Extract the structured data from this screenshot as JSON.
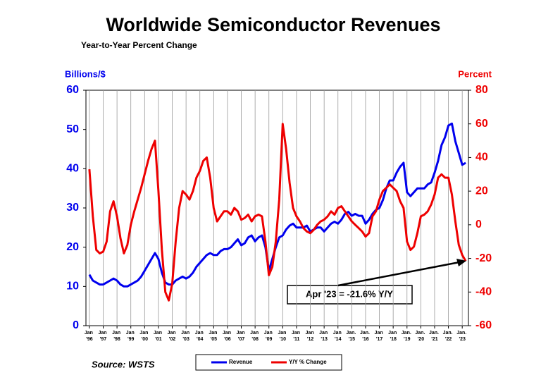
{
  "chart_data": {
    "type": "line",
    "title": "Worldwide Semiconductor Revenues",
    "subtitle": "Year-to-Year Percent Change",
    "y_label": "Billions/$",
    "y2_label": "Percent",
    "source": "Source: WSTS",
    "annotation": "Apr '23 = -21.6% Y/Y",
    "grid": true,
    "xlim": [
      1995.75,
      2023.45
    ],
    "ylim": [
      0,
      60
    ],
    "y2lim": [
      -60,
      80
    ],
    "yticks": [
      0,
      10,
      20,
      30,
      40,
      50,
      60
    ],
    "y2ticks": [
      -60,
      -40,
      -20,
      0,
      20,
      40,
      60,
      80
    ],
    "xticks": [
      {
        "value": 1996,
        "label": "Jan '96"
      },
      {
        "value": 1997,
        "label": "Jan '97"
      },
      {
        "value": 1998,
        "label": "Jan '98"
      },
      {
        "value": 1999,
        "label": "Jan '99"
      },
      {
        "value": 2000,
        "label": "Jan '00"
      },
      {
        "value": 2001,
        "label": "Jan '01"
      },
      {
        "value": 2002,
        "label": "Jan '02"
      },
      {
        "value": 2003,
        "label": "Jan '03"
      },
      {
        "value": 2004,
        "label": "Jan '04"
      },
      {
        "value": 2005,
        "label": "Jan '05"
      },
      {
        "value": 2006,
        "label": "Jan '06"
      },
      {
        "value": 2007,
        "label": "Jan '07"
      },
      {
        "value": 2008,
        "label": "Jan '08"
      },
      {
        "value": 2009,
        "label": "Jan '09"
      },
      {
        "value": 2010,
        "label": "Jan '10"
      },
      {
        "value": 2011,
        "label": "Jan '11"
      },
      {
        "value": 2012,
        "label": "Jan '12"
      },
      {
        "value": 2013,
        "label": "Jan '13"
      },
      {
        "value": 2014,
        "label": "Jan '14"
      },
      {
        "value": 2015,
        "label": "Jan. '15"
      },
      {
        "value": 2016,
        "label": "Jan. '16"
      },
      {
        "value": 2017,
        "label": "Jan '17"
      },
      {
        "value": 2018,
        "label": "Jan '18"
      },
      {
        "value": 2019,
        "label": "Jan. '19"
      },
      {
        "value": 2020,
        "label": "Jan. '20"
      },
      {
        "value": 2021,
        "label": "Jan. '21"
      },
      {
        "value": 2022,
        "label": "Jan. '22"
      },
      {
        "value": 2023,
        "label": "Jan. '23"
      }
    ],
    "x": [
      1996,
      1996.25,
      1996.5,
      1996.75,
      1997,
      1997.25,
      1997.5,
      1997.75,
      1998,
      1998.25,
      1998.5,
      1998.75,
      1999,
      1999.25,
      1999.5,
      1999.75,
      2000,
      2000.25,
      2000.5,
      2000.75,
      2001,
      2001.25,
      2001.5,
      2001.75,
      2002,
      2002.25,
      2002.5,
      2002.75,
      2003,
      2003.25,
      2003.5,
      2003.75,
      2004,
      2004.25,
      2004.5,
      2004.75,
      2005,
      2005.25,
      2005.5,
      2005.75,
      2006,
      2006.25,
      2006.5,
      2006.75,
      2007,
      2007.25,
      2007.5,
      2007.75,
      2008,
      2008.25,
      2008.5,
      2008.75,
      2009,
      2009.25,
      2009.5,
      2009.75,
      2010,
      2010.25,
      2010.5,
      2010.75,
      2011,
      2011.25,
      2011.5,
      2011.75,
      2012,
      2012.25,
      2012.5,
      2012.75,
      2013,
      2013.25,
      2013.5,
      2013.75,
      2014,
      2014.25,
      2014.5,
      2014.75,
      2015,
      2015.25,
      2015.5,
      2015.75,
      2016,
      2016.25,
      2016.5,
      2016.75,
      2017,
      2017.25,
      2017.5,
      2017.75,
      2018,
      2018.25,
      2018.5,
      2018.75,
      2019,
      2019.25,
      2019.5,
      2019.75,
      2020,
      2020.25,
      2020.5,
      2020.75,
      2021,
      2021.25,
      2021.5,
      2021.75,
      2022,
      2022.25,
      2022.5,
      2022.75,
      2023,
      2023.25
    ],
    "series": [
      {
        "name": "Revenue",
        "color": "#0000ee",
        "values": [
          13,
          11.5,
          11,
          10.5,
          10.5,
          11,
          11.5,
          12,
          11.5,
          10.5,
          10,
          10,
          10.5,
          11,
          11.5,
          12.5,
          14,
          15.5,
          17,
          18.5,
          17,
          13.5,
          11,
          10.5,
          10.5,
          11.5,
          12,
          12.5,
          12,
          12.5,
          13.5,
          15,
          16,
          17,
          18,
          18.5,
          18,
          18,
          19,
          19.5,
          19.5,
          20,
          21,
          22,
          20.5,
          21,
          22.5,
          23,
          21.5,
          22.5,
          23,
          20,
          14,
          17,
          20,
          22.5,
          23,
          24.5,
          25.5,
          26,
          25,
          25,
          25,
          25.5,
          24,
          24.5,
          25,
          25,
          24,
          25,
          26,
          26.5,
          26,
          27,
          28.5,
          29,
          28,
          28.5,
          28,
          28,
          26,
          27,
          28.5,
          29.5,
          30,
          32,
          35,
          37,
          37,
          39,
          40.5,
          41.5,
          34,
          33,
          34,
          35,
          35,
          35,
          36,
          36.5,
          39,
          42,
          46,
          48,
          51,
          51.5,
          47,
          44,
          41,
          41.5
        ]
      },
      {
        "name": "Y/Y % Change",
        "color": "#ee0000",
        "axis": "y2",
        "values": [
          33,
          5,
          -15,
          -17,
          -16,
          -10,
          8,
          14,
          5,
          -8,
          -17,
          -12,
          0,
          8,
          15,
          22,
          30,
          38,
          45,
          50,
          20,
          -15,
          -40,
          -45,
          -35,
          -10,
          10,
          20,
          18,
          15,
          20,
          28,
          32,
          38,
          40,
          28,
          10,
          2,
          5,
          8,
          8,
          6,
          10,
          8,
          3,
          4,
          6,
          2,
          5,
          6,
          5,
          -10,
          -30,
          -25,
          -10,
          15,
          60,
          45,
          25,
          10,
          5,
          2,
          -2,
          -4,
          -5,
          -3,
          0,
          2,
          3,
          5,
          8,
          6,
          10,
          11,
          8,
          5,
          2,
          0,
          -2,
          -4,
          -7,
          -5,
          5,
          8,
          15,
          20,
          22,
          24,
          22,
          20,
          14,
          10,
          -10,
          -15,
          -13,
          -5,
          5,
          6,
          8,
          12,
          18,
          28,
          30,
          28,
          28,
          18,
          2,
          -12,
          -18,
          -21.6
        ]
      }
    ]
  }
}
